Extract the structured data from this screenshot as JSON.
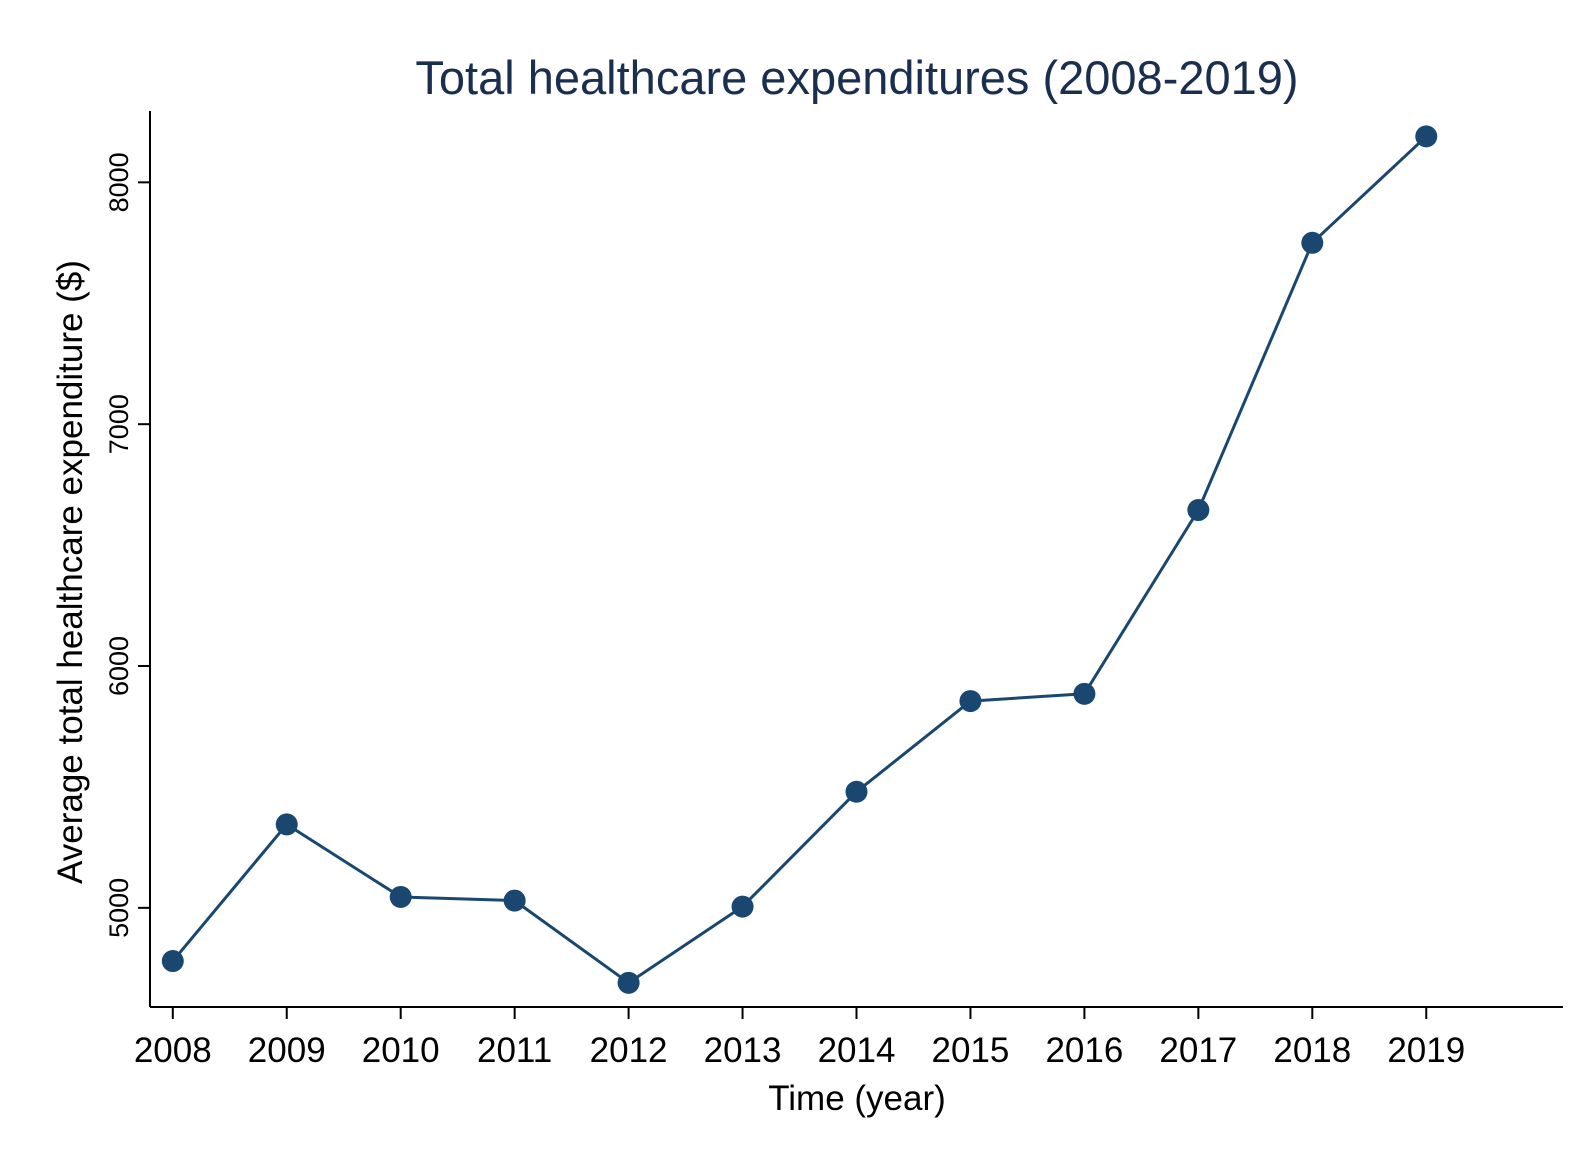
{
  "chart_data": {
    "type": "line",
    "title": "Total healthcare expenditures (2008-2019)",
    "xlabel": "Time (year)",
    "ylabel": "Average total healthcare expenditure ($)",
    "x": [
      2008,
      2009,
      2010,
      2011,
      2012,
      2013,
      2014,
      2015,
      2016,
      2017,
      2018,
      2019
    ],
    "values": [
      4780,
      5345,
      5045,
      5030,
      4690,
      5005,
      5480,
      5855,
      5885,
      6645,
      7750,
      8190
    ],
    "xticks": [
      "2008",
      "2009",
      "2010",
      "2011",
      "2012",
      "2013",
      "2014",
      "2015",
      "2016",
      "2017",
      "2018",
      "2019"
    ],
    "yticks": [
      5000,
      6000,
      7000,
      8000
    ],
    "ylim": [
      4590,
      8295
    ],
    "xlim": [
      2007.8,
      2020.2
    ],
    "grid": false,
    "legend": "none",
    "line_color": "#1a476f",
    "marker": "circle"
  }
}
